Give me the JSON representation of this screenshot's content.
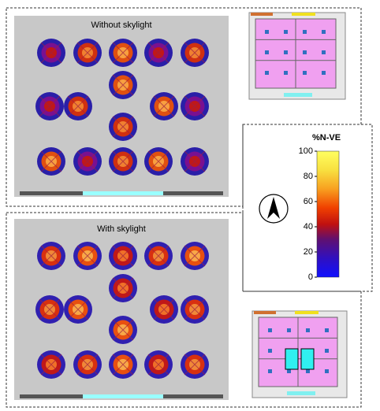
{
  "panels": [
    {
      "title": "Without skylight"
    },
    {
      "title": "With skylight"
    }
  ],
  "colorbar": {
    "title": "%N-VE",
    "lim": [
      0,
      100
    ],
    "ticks": [
      0,
      20,
      40,
      60,
      80,
      100
    ]
  }
}
